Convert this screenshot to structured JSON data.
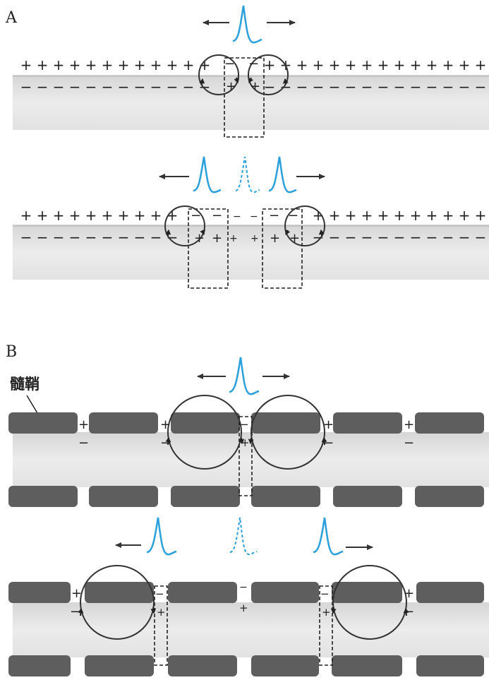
{
  "panels": {
    "a": {
      "label": "A"
    },
    "b": {
      "label": "B",
      "myelin_label": "髓鞘"
    }
  },
  "signs": {
    "plus": "+",
    "minus": "−"
  },
  "colors": {
    "spike": "#2ba0dc",
    "axon_fill": "#e3e3e3",
    "myelin": "#5e5e5e",
    "line": "#333333",
    "dashed_box": "#222222"
  },
  "icons": {
    "arrow": "arrow-icon",
    "spike": "action-potential-spike-icon"
  }
}
